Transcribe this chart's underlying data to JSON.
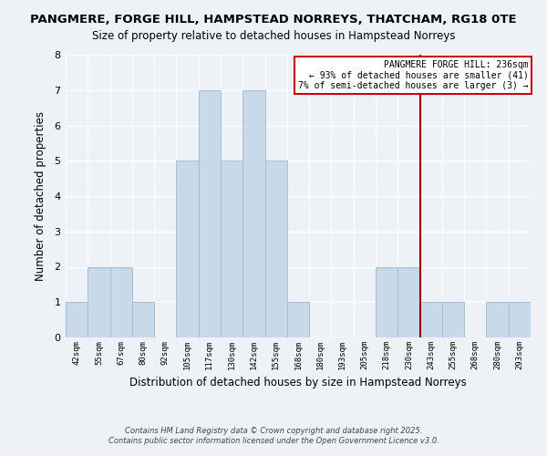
{
  "title1": "PANGMERE, FORGE HILL, HAMPSTEAD NORREYS, THATCHAM, RG18 0TE",
  "title2": "Size of property relative to detached houses in Hampstead Norreys",
  "xlabel": "Distribution of detached houses by size in Hampstead Norreys",
  "ylabel": "Number of detached properties",
  "bin_labels": [
    "42sqm",
    "55sqm",
    "67sqm",
    "80sqm",
    "92sqm",
    "105sqm",
    "117sqm",
    "130sqm",
    "142sqm",
    "155sqm",
    "168sqm",
    "180sqm",
    "193sqm",
    "205sqm",
    "218sqm",
    "230sqm",
    "243sqm",
    "255sqm",
    "268sqm",
    "280sqm",
    "293sqm"
  ],
  "bar_heights": [
    1,
    2,
    2,
    1,
    0,
    5,
    7,
    5,
    7,
    5,
    1,
    0,
    0,
    0,
    2,
    2,
    1,
    1,
    0,
    1,
    1
  ],
  "bar_color": "#c8daea",
  "bar_edgecolor": "#a0c0d8",
  "ylim": [
    0,
    8
  ],
  "yticks": [
    0,
    1,
    2,
    3,
    4,
    5,
    6,
    7,
    8
  ],
  "vline_x_index": 15.5,
  "vline_color": "#990000",
  "legend_title": "PANGMERE FORGE HILL: 236sqm",
  "legend_line1": "← 93% of detached houses are smaller (41)",
  "legend_line2": "7% of semi-detached houses are larger (3) →",
  "legend_box_color": "#cc0000",
  "footnote1": "Contains HM Land Registry data © Crown copyright and database right 2025.",
  "footnote2": "Contains public sector information licensed under the Open Government Licence v3.0.",
  "bg_color": "#eef2f7",
  "plot_bg_color": "#eef2f7",
  "grid_color": "#ffffff",
  "title1_fontsize": 9.5,
  "title2_fontsize": 8.5
}
